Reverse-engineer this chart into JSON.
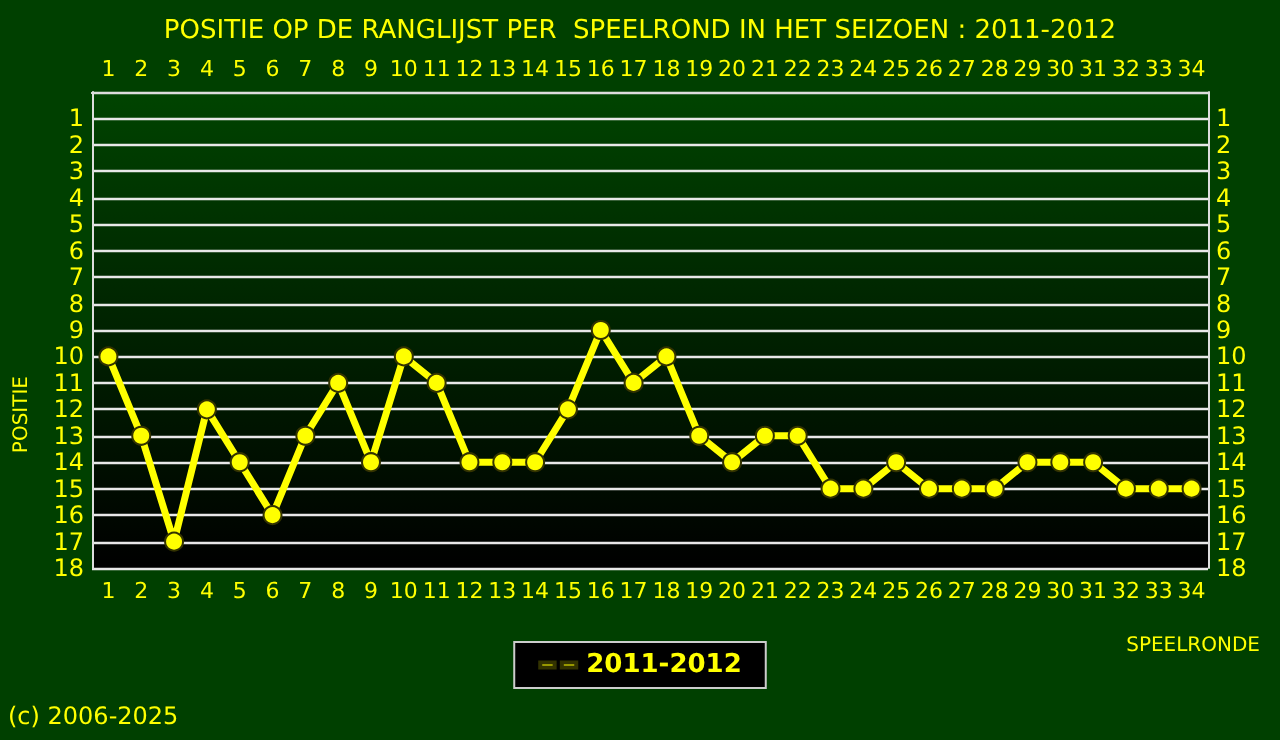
{
  "chart_data": {
    "type": "line",
    "title": "POSITIE OP DE RANGLIJST PER  SPEELROND IN HET SEIZOEN : 2011-2012",
    "xlabel": "SPEELRONDE",
    "ylabel": "POSITIE",
    "annotations": [
      "(c) 2006-2025"
    ],
    "categories": [
      "1",
      "2",
      "3",
      "4",
      "5",
      "6",
      "7",
      "8",
      "9",
      "10",
      "11",
      "12",
      "13",
      "14",
      "15",
      "16",
      "17",
      "18",
      "19",
      "20",
      "21",
      "22",
      "23",
      "24",
      "25",
      "26",
      "27",
      "28",
      "29",
      "30",
      "31",
      "32",
      "33",
      "34"
    ],
    "series": [
      {
        "name": "2011-2012",
        "color": "#ffff00",
        "values": [
          10,
          13,
          17,
          12,
          14,
          16,
          13,
          11,
          14,
          10,
          11,
          14,
          14,
          14,
          12,
          9,
          11,
          10,
          13,
          14,
          13,
          13,
          15,
          15,
          14,
          15,
          15,
          15,
          14,
          14,
          14,
          15,
          15,
          15
        ]
      }
    ],
    "ylim": [
      18,
      0
    ],
    "yticks": [
      1,
      2,
      3,
      4,
      5,
      6,
      7,
      8,
      9,
      10,
      11,
      12,
      13,
      14,
      15,
      16,
      17,
      18
    ],
    "y2lim": [
      18,
      0
    ],
    "y2ticks": [
      1,
      2,
      3,
      4,
      5,
      6,
      7,
      8,
      9,
      10,
      11,
      12,
      13,
      14,
      15,
      16,
      17,
      18
    ],
    "grid": "y",
    "legend": "bottom",
    "marker": "circle",
    "line_style": "solid"
  }
}
